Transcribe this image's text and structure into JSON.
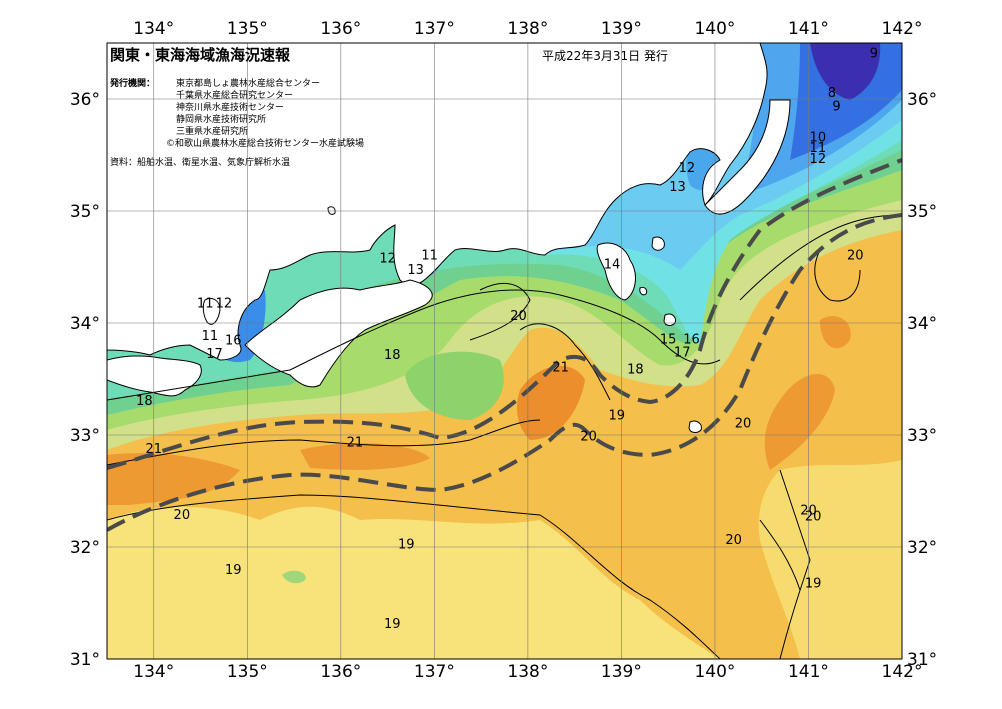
{
  "header": {
    "title": "関東・東海海域漁海況速報",
    "date": "平成22年3月31日 発行"
  },
  "publishers": {
    "label": "発行機関：",
    "lines": [
      "東京都島しょ農林水産総合センター",
      "千葉県水産総合研究センター",
      "神奈川県水産技術センター",
      "静岡県水産技術研究所",
      "三重県水産研究所",
      "©和歌山県農林水産総合技術センター水産試験場"
    ]
  },
  "source": "資料：船舶水温、衛星水温、気象庁解析水温",
  "axes": {
    "lon_top": [
      "134°",
      "135°",
      "136°",
      "137°",
      "138°",
      "139°",
      "140°",
      "141°",
      "142°"
    ],
    "lon_bottom": [
      "134°",
      "135°",
      "136°",
      "137°",
      "138°",
      "139°",
      "140°",
      "141°",
      "142°"
    ],
    "lat_left": [
      "36°",
      "35°",
      "34°",
      "33°",
      "32°",
      "31°"
    ],
    "lat_right": [
      "36°",
      "35°",
      "34°",
      "33°",
      "32°",
      "31°"
    ]
  },
  "map": {
    "lon_range": [
      133.5,
      142.0
    ],
    "lat_range": [
      31.0,
      36.5
    ],
    "isotherm_labels": [
      {
        "text": "9",
        "lon": 141.7,
        "lat": 36.4
      },
      {
        "text": "8",
        "lon": 141.25,
        "lat": 36.05
      },
      {
        "text": "9",
        "lon": 141.3,
        "lat": 35.93
      },
      {
        "text": "10",
        "lon": 141.1,
        "lat": 35.65
      },
      {
        "text": "11",
        "lon": 141.1,
        "lat": 35.56
      },
      {
        "text": "12",
        "lon": 141.1,
        "lat": 35.46
      },
      {
        "text": "12",
        "lon": 139.7,
        "lat": 35.38
      },
      {
        "text": "13",
        "lon": 139.6,
        "lat": 35.21
      },
      {
        "text": "12",
        "lon": 136.5,
        "lat": 34.57
      },
      {
        "text": "11",
        "lon": 136.95,
        "lat": 34.6
      },
      {
        "text": "13",
        "lon": 136.8,
        "lat": 34.47
      },
      {
        "text": "14",
        "lon": 138.9,
        "lat": 34.52
      },
      {
        "text": "11",
        "lon": 134.55,
        "lat": 34.17
      },
      {
        "text": "12",
        "lon": 134.75,
        "lat": 34.17
      },
      {
        "text": "11",
        "lon": 134.6,
        "lat": 33.88
      },
      {
        "text": "16",
        "lon": 134.85,
        "lat": 33.84
      },
      {
        "text": "17",
        "lon": 134.65,
        "lat": 33.72
      },
      {
        "text": "15",
        "lon": 139.5,
        "lat": 33.85
      },
      {
        "text": "16",
        "lon": 139.75,
        "lat": 33.85
      },
      {
        "text": "17",
        "lon": 139.65,
        "lat": 33.73
      },
      {
        "text": "18",
        "lon": 133.9,
        "lat": 33.3
      },
      {
        "text": "18",
        "lon": 136.55,
        "lat": 33.71
      },
      {
        "text": "18",
        "lon": 139.15,
        "lat": 33.58
      },
      {
        "text": "20",
        "lon": 137.9,
        "lat": 34.06
      },
      {
        "text": "21",
        "lon": 138.35,
        "lat": 33.6
      },
      {
        "text": "19",
        "lon": 138.95,
        "lat": 33.17
      },
      {
        "text": "20",
        "lon": 138.65,
        "lat": 32.98
      },
      {
        "text": "20",
        "lon": 140.3,
        "lat": 33.1
      },
      {
        "text": "20",
        "lon": 141.5,
        "lat": 34.6
      },
      {
        "text": "21",
        "lon": 134.0,
        "lat": 32.87
      },
      {
        "text": "21",
        "lon": 136.15,
        "lat": 32.93
      },
      {
        "text": "20",
        "lon": 134.3,
        "lat": 32.28
      },
      {
        "text": "19",
        "lon": 136.7,
        "lat": 32.02
      },
      {
        "text": "19",
        "lon": 134.85,
        "lat": 31.79
      },
      {
        "text": "19",
        "lon": 136.55,
        "lat": 31.31
      },
      {
        "text": "20",
        "lon": 141.0,
        "lat": 32.32
      },
      {
        "text": "20",
        "lon": 141.05,
        "lat": 32.27
      },
      {
        "text": "20",
        "lon": 140.2,
        "lat": 32.06
      },
      {
        "text": "19",
        "lon": 141.05,
        "lat": 31.67
      }
    ]
  }
}
